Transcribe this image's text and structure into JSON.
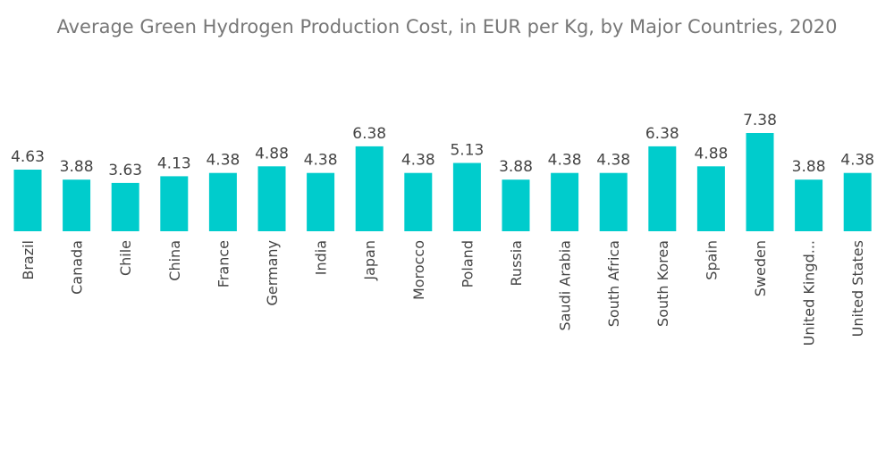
{
  "chart_data": {
    "type": "bar",
    "title": "Average Green Hydrogen Production Cost, in EUR per Kg, by Major Countries, 2020",
    "xlabel": "",
    "ylabel": "",
    "ylim": [
      0,
      7.38
    ],
    "grid": false,
    "bar_color": "#00CCCC",
    "categories": [
      "Brazil",
      "Canada",
      "Chile",
      "China",
      "France",
      "Germany",
      "India",
      "Japan",
      "Morocco",
      "Poland",
      "Russia",
      "Saudi Arabia",
      "South Africa",
      "South Korea",
      "Spain",
      "Sweden",
      "United Kingd...",
      "United States"
    ],
    "values": [
      4.63,
      3.88,
      3.63,
      4.13,
      4.38,
      4.88,
      4.38,
      6.38,
      4.38,
      5.13,
      3.88,
      4.38,
      4.38,
      6.38,
      4.88,
      7.38,
      3.88,
      4.38
    ],
    "value_labels": [
      "4.63",
      "3.88",
      "3.63",
      "4.13",
      "4.38",
      "4.88",
      "4.38",
      "6.38",
      "4.38",
      "5.13",
      "3.88",
      "4.38",
      "4.38",
      "6.38",
      "4.88",
      "7.38",
      "3.88",
      "4.38"
    ]
  }
}
